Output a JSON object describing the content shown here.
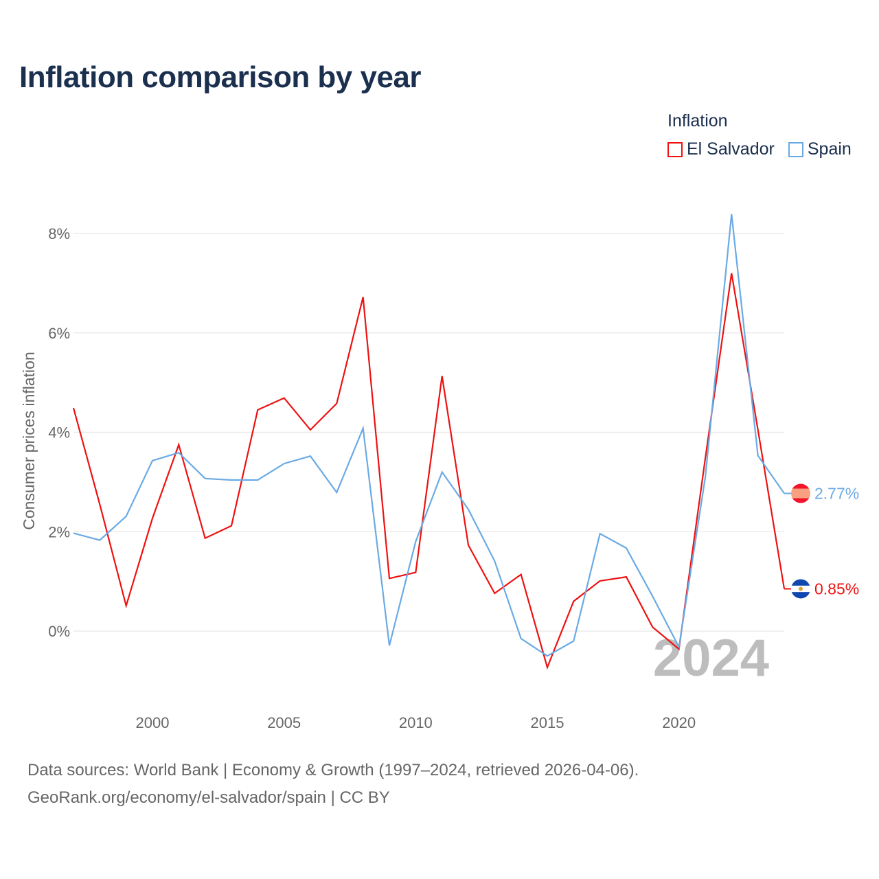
{
  "title": "Inflation comparison by year",
  "legend": {
    "title": "Inflation",
    "items": [
      {
        "label": "El Salvador",
        "color": "#ee1111"
      },
      {
        "label": "Spain",
        "color": "#6aaae4"
      }
    ]
  },
  "footer": {
    "line1": "Data sources: World Bank | Economy & Growth (1997–2024, retrieved 2026-04-06).",
    "line2": "GeoRank.org/economy/el-salvador/spain | CC BY"
  },
  "chart_data": {
    "type": "line",
    "title": "Inflation comparison by year",
    "xlabel": "",
    "ylabel": "Consumer prices inflation",
    "x": [
      1997,
      1998,
      1999,
      2000,
      2001,
      2002,
      2003,
      2004,
      2005,
      2006,
      2007,
      2008,
      2009,
      2010,
      2011,
      2012,
      2013,
      2014,
      2015,
      2016,
      2017,
      2018,
      2019,
      2020,
      2021,
      2022,
      2023,
      2024
    ],
    "xticks": [
      2000,
      2005,
      2010,
      2015,
      2020
    ],
    "xtick_labels": [
      "2000",
      "2005",
      "2010",
      "2015",
      "2020"
    ],
    "xlim": [
      1997,
      2024
    ],
    "ylim": [
      -1.3,
      8.6
    ],
    "yticks": [
      0,
      2,
      4,
      6,
      8
    ],
    "ytick_labels": [
      "0%",
      "2%",
      "4%",
      "6%",
      "8%"
    ],
    "grid": true,
    "year_label": "2024",
    "series": [
      {
        "name": "El Salvador",
        "color": "#ee1111",
        "end_label": "0.85%",
        "flag_colors": [
          "#0f47af",
          "#ffffff",
          "#0f47af"
        ],
        "values": [
          4.49,
          2.55,
          0.51,
          2.27,
          3.75,
          1.87,
          2.12,
          4.45,
          4.69,
          4.05,
          4.58,
          6.72,
          1.06,
          1.18,
          5.13,
          1.73,
          0.76,
          1.14,
          -0.73,
          0.6,
          1.01,
          1.09,
          0.08,
          -0.36,
          3.47,
          7.2,
          4.05,
          0.85
        ]
      },
      {
        "name": "Spain",
        "color": "#6aaae4",
        "end_label": "2.77%",
        "flag_colors": [
          "#f1142a",
          "#f8a080",
          "#f1142a"
        ],
        "values": [
          1.97,
          1.83,
          2.31,
          3.43,
          3.59,
          3.07,
          3.04,
          3.04,
          3.37,
          3.52,
          2.79,
          4.08,
          -0.29,
          1.8,
          3.2,
          2.45,
          1.41,
          -0.15,
          -0.5,
          -0.2,
          1.96,
          1.67,
          0.7,
          -0.32,
          3.09,
          8.39,
          3.53,
          2.77
        ]
      }
    ]
  }
}
